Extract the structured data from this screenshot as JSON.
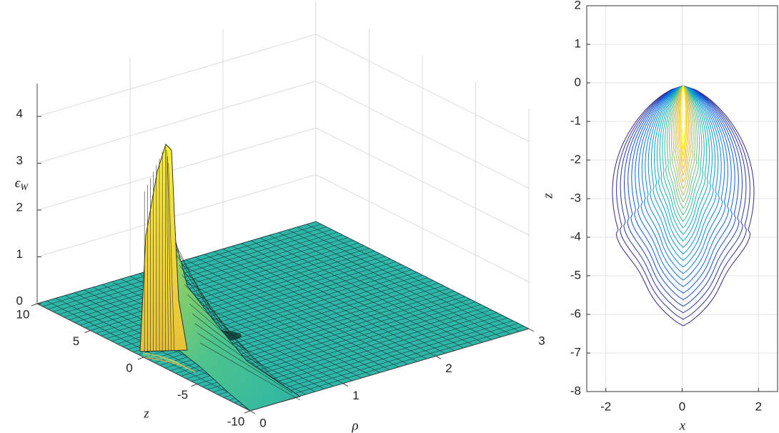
{
  "chart_data": [
    {
      "type": "surface",
      "xlabel": "ρ",
      "ylabel": "z",
      "zlabel": {
        "symbol": "ϵ",
        "subscript": "W"
      },
      "xlim": [
        0,
        3
      ],
      "xticks": [
        0,
        1,
        2,
        3
      ],
      "ylim": [
        -10,
        10
      ],
      "yticks": [
        10,
        5,
        0,
        -5,
        -10
      ],
      "zlim": [
        0,
        4.7
      ],
      "zticks": [
        0,
        1,
        2,
        3,
        4
      ],
      "grid": true
    },
    {
      "type": "contour",
      "xlabel": "x",
      "ylabel": "z",
      "xlim": [
        -2.5,
        2.5
      ],
      "xticks": [
        -2,
        0,
        2
      ],
      "ylim": [
        -8,
        2
      ],
      "yticks": [
        2,
        1,
        0,
        -1,
        -2,
        -3,
        -4,
        -5,
        -6,
        -7,
        -8
      ],
      "grid": true
    }
  ]
}
